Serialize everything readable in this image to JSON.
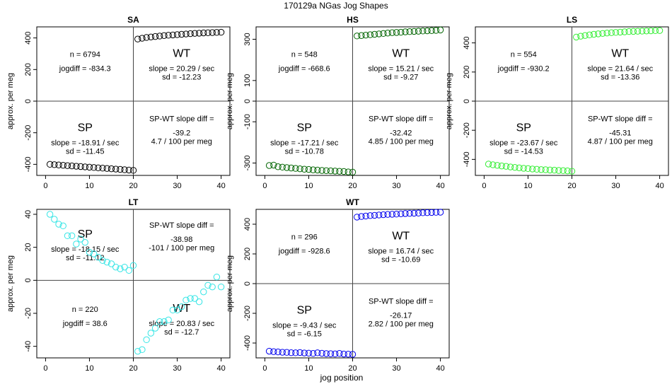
{
  "figure": {
    "title": "170129a    NGas Jog Shapes",
    "xlabel": "jog position",
    "ylabel": "approx. per meg",
    "xlim": [
      -2,
      42
    ],
    "xticks": [
      0,
      10,
      20,
      30,
      40
    ]
  },
  "chart_data": [
    {
      "type": "scatter",
      "title": "SA",
      "color": "#000000",
      "ylim": [
        -470,
        470
      ],
      "yticks": [
        -400,
        -200,
        0,
        200,
        400
      ],
      "x": [
        1,
        2,
        3,
        4,
        5,
        6,
        7,
        8,
        9,
        10,
        11,
        12,
        13,
        14,
        15,
        16,
        17,
        18,
        19,
        20,
        21,
        22,
        23,
        24,
        25,
        26,
        27,
        28,
        29,
        30,
        31,
        32,
        33,
        34,
        35,
        36,
        37,
        38,
        39,
        40
      ],
      "values": [
        -400,
        -402,
        -404,
        -406,
        -408,
        -410,
        -412,
        -414,
        -416,
        -418,
        -420,
        -422,
        -424,
        -426,
        -428,
        -430,
        -432,
        -434,
        -436,
        -438,
        393,
        398,
        403,
        406,
        409,
        412,
        415,
        417,
        419,
        421,
        423,
        425,
        427,
        429,
        430,
        432,
        433,
        434,
        435,
        436
      ],
      "left_top": {
        "n": "n = 6794",
        "jogdiff": "jogdiff = -834.3"
      },
      "right_top": {
        "heading": "WT",
        "slope": "slope = 20.29 / sec",
        "sd": "sd = -12.23"
      },
      "left_bottom": {
        "heading": "SP",
        "slope": "slope = -18.91 / sec",
        "sd": "sd = -11.45"
      },
      "right_bottom": {
        "heading": "SP-WT slope diff =",
        "value": "-39.2",
        "per": "4.7 / 100 per meg"
      }
    },
    {
      "type": "scatter",
      "title": "HS",
      "color": "#006400",
      "ylim": [
        -360,
        360
      ],
      "yticks": [
        -300,
        -100,
        0,
        100,
        300
      ],
      "ytick_labels": [
        "-300",
        "-100",
        "0",
        "100",
        "300"
      ],
      "x": [
        1,
        2,
        3,
        4,
        5,
        6,
        7,
        8,
        9,
        10,
        11,
        12,
        13,
        14,
        15,
        16,
        17,
        18,
        19,
        20,
        21,
        22,
        23,
        24,
        25,
        26,
        27,
        28,
        29,
        30,
        31,
        32,
        33,
        34,
        35,
        36,
        37,
        38,
        39,
        40
      ],
      "values": [
        -312,
        -310,
        -318,
        -320,
        -322,
        -324,
        -326,
        -328,
        -330,
        -331,
        -333,
        -334,
        -336,
        -337,
        -338,
        -339,
        -340,
        -341,
        -343,
        -344,
        316,
        318,
        320,
        322,
        324,
        326,
        328,
        330,
        332,
        333,
        334,
        336,
        337,
        338,
        339,
        340,
        341,
        342,
        343,
        345
      ],
      "left_top": {
        "n": "n = 548",
        "jogdiff": "jogdiff = -668.6"
      },
      "right_top": {
        "heading": "WT",
        "slope": "slope = 15.21 / sec",
        "sd": "sd = -9.27"
      },
      "left_bottom": {
        "heading": "SP",
        "slope": "slope = -17.21 / sec",
        "sd": "sd = -10.78"
      },
      "right_bottom": {
        "heading": "SP-WT slope diff =",
        "value": "-32.42",
        "per": "4.85 / 100 per meg"
      }
    },
    {
      "type": "scatter",
      "title": "LS",
      "color": "#33ee33",
      "ylim": [
        -510,
        510
      ],
      "yticks": [
        -400,
        -200,
        0,
        200,
        400
      ],
      "x": [
        1,
        2,
        3,
        4,
        5,
        6,
        7,
        8,
        9,
        10,
        11,
        12,
        13,
        14,
        15,
        16,
        17,
        18,
        19,
        20,
        21,
        22,
        23,
        24,
        25,
        26,
        27,
        28,
        29,
        30,
        31,
        32,
        33,
        34,
        35,
        36,
        37,
        38,
        39,
        40
      ],
      "values": [
        -432,
        -437,
        -441,
        -445,
        -448,
        -452,
        -455,
        -458,
        -461,
        -463,
        -466,
        -468,
        -470,
        -471,
        -473,
        -474,
        -476,
        -477,
        -479,
        -481,
        440,
        446,
        451,
        455,
        459,
        462,
        465,
        468,
        470,
        472,
        474,
        476,
        478,
        479,
        480,
        481,
        482,
        483,
        484,
        485
      ],
      "left_top": {
        "n": "n = 554",
        "jogdiff": "jogdiff = -930.2"
      },
      "right_top": {
        "heading": "WT",
        "slope": "slope = 21.64 / sec",
        "sd": "sd = -13.36"
      },
      "left_bottom": {
        "heading": "SP",
        "slope": "slope = -23.67 / sec",
        "sd": "sd = -14.53"
      },
      "right_bottom": {
        "heading": "SP-WT slope diff =",
        "value": "-45.31",
        "per": "4.87 / 100 per meg"
      }
    },
    {
      "type": "scatter",
      "title": "LT",
      "color": "#33e5e5",
      "ylim": [
        -47,
        43
      ],
      "yticks": [
        -40,
        -20,
        0,
        20,
        40
      ],
      "x": [
        1,
        2,
        3,
        4,
        5,
        6,
        7,
        8,
        9,
        10,
        11,
        12,
        13,
        14,
        15,
        16,
        17,
        18,
        19,
        20,
        21,
        22,
        23,
        24,
        25,
        26,
        27,
        28,
        29,
        30,
        31,
        32,
        33,
        34,
        35,
        36,
        37,
        38,
        39,
        40
      ],
      "values": [
        40,
        37,
        34,
        33,
        27,
        27,
        22,
        25,
        23,
        17,
        16,
        14,
        12,
        11,
        10,
        8,
        7,
        8,
        6,
        9,
        -43,
        -42,
        -36,
        -32,
        -29,
        -25,
        -25,
        -24,
        -18,
        -18,
        -16,
        -12,
        -11,
        -11,
        -13,
        -7,
        -3,
        -4,
        2,
        -4
      ],
      "left_top": {
        "n": "n = 220",
        "jogdiff": "jogdiff = 38.6"
      },
      "right_top": {
        "heading": "WT",
        "slope": "slope = 20.83 / sec",
        "sd": "sd = -12.7"
      },
      "left_bottom": {
        "heading": "SP",
        "slope": "slope = -18.15 / sec",
        "sd": "sd = -11.12"
      },
      "right_bottom": {
        "heading": "SP-WT slope diff =",
        "value": "-38.98",
        "per": "-101 / 100 per meg"
      },
      "swap_quadrants": true
    },
    {
      "type": "scatter",
      "title": "WT",
      "color": "#0000ee",
      "ylim": [
        -500,
        500
      ],
      "yticks": [
        -400,
        -200,
        0,
        200,
        400
      ],
      "x": [
        1,
        2,
        3,
        4,
        5,
        6,
        7,
        8,
        9,
        10,
        11,
        12,
        13,
        14,
        15,
        16,
        17,
        18,
        19,
        20,
        21,
        22,
        23,
        24,
        25,
        26,
        27,
        28,
        29,
        30,
        31,
        32,
        33,
        34,
        35,
        36,
        37,
        38,
        39,
        40
      ],
      "values": [
        -455,
        -458,
        -460,
        -462,
        -463,
        -465,
        -466,
        -464,
        -467,
        -468,
        -470,
        -466,
        -469,
        -471,
        -472,
        -473,
        -470,
        -474,
        -475,
        -476,
        448,
        452,
        455,
        458,
        460,
        462,
        464,
        466,
        467,
        468,
        470,
        472,
        473,
        474,
        475,
        477,
        478,
        479,
        480,
        481
      ],
      "left_top": {
        "n": "n = 296",
        "jogdiff": "jogdiff = -928.6"
      },
      "right_top": {
        "heading": "WT",
        "slope": "slope = 16.74 / sec",
        "sd": "sd = -10.69"
      },
      "left_bottom": {
        "heading": "SP",
        "slope": "slope = -9.43 / sec",
        "sd": "sd = -6.15"
      },
      "right_bottom": {
        "heading": "SP-WT slope diff =",
        "value": "-26.17",
        "per": "2.82 / 100 per meg"
      }
    }
  ]
}
